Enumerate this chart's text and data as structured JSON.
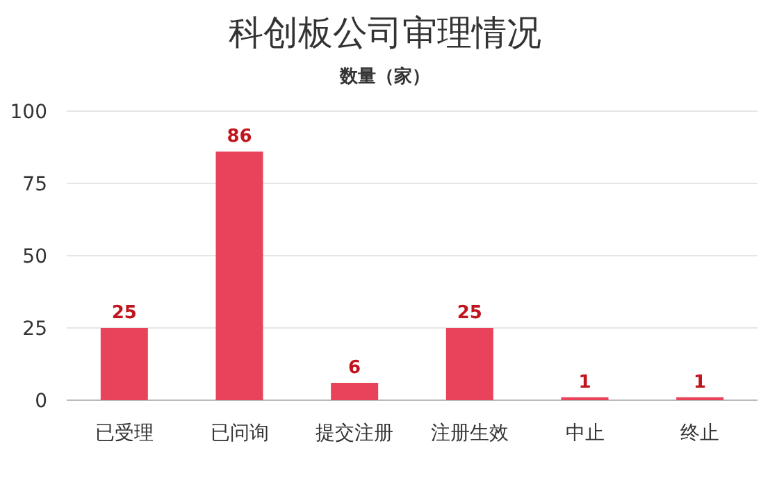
{
  "chart_data": {
    "type": "bar",
    "title": "科创板公司审理情况",
    "subtitle": "数量（家）",
    "categories": [
      "已受理",
      "已问询",
      "提交注册",
      "注册生效",
      "中止",
      "终止"
    ],
    "values": [
      25,
      86,
      6,
      25,
      1,
      1
    ],
    "color": "#e8435a",
    "ylim": [
      0,
      100
    ],
    "yticks": [
      0,
      25,
      50,
      75,
      100
    ],
    "grid": "y",
    "data_labels": true
  }
}
